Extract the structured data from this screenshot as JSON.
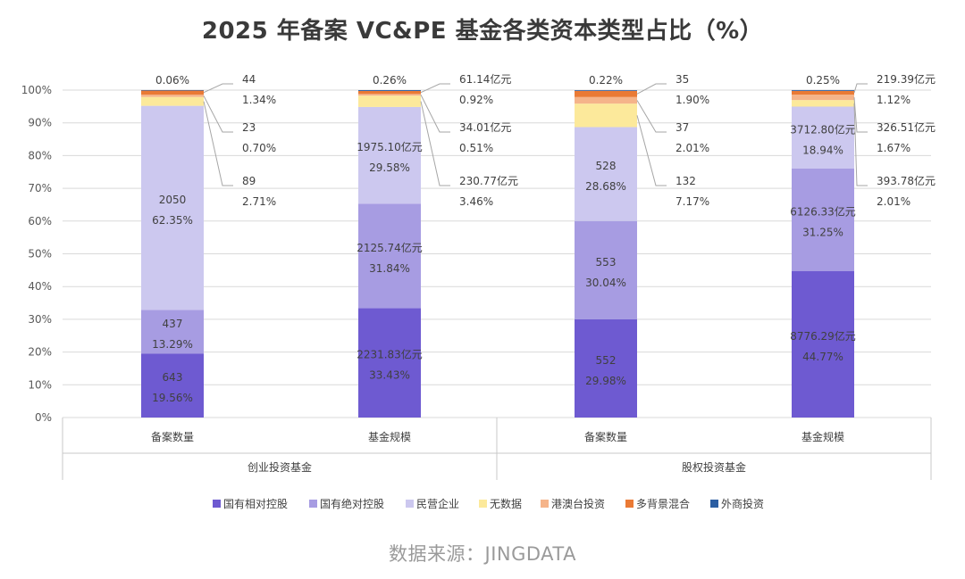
{
  "chart_data": {
    "type": "bar",
    "stacked": true,
    "title": "2025 年备案 VC&PE 基金各类资本类型占比（%）",
    "source": "数据来源：JINGDATA",
    "ylim": [
      0,
      100
    ],
    "y_ticks": [
      "0%",
      "10%",
      "20%",
      "30%",
      "40%",
      "50%",
      "60%",
      "70%",
      "80%",
      "90%",
      "100%"
    ],
    "groups": [
      {
        "label": "创业投资基金",
        "categories": [
          "备案数量",
          "基金规模"
        ]
      },
      {
        "label": "股权投资基金",
        "categories": [
          "备案数量",
          "基金规模"
        ]
      }
    ],
    "categories": [
      "备案数量",
      "基金规模",
      "备案数量",
      "基金规模"
    ],
    "series": [
      {
        "name": "国有相对控股",
        "color": "#6e5ad1",
        "values": [
          19.56,
          33.43,
          29.98,
          44.77
        ],
        "labels": [
          "643",
          "2231.83亿元",
          "552",
          "8776.29亿元"
        ]
      },
      {
        "name": "国有绝对控股",
        "color": "#a79ce2",
        "values": [
          13.29,
          31.84,
          30.04,
          31.25
        ],
        "labels": [
          "437",
          "2125.74亿元",
          "553",
          "6126.33亿元"
        ]
      },
      {
        "name": "民营企业",
        "color": "#ccc8ef",
        "values": [
          62.35,
          29.58,
          28.68,
          18.94
        ],
        "labels": [
          "2050",
          "1975.10亿元",
          "528",
          "3712.80亿元"
        ]
      },
      {
        "name": "无数据",
        "color": "#fce99b",
        "values": [
          2.71,
          3.46,
          7.17,
          2.01
        ],
        "labels": [
          "89",
          "230.77亿元",
          "132",
          "393.78亿元"
        ]
      },
      {
        "name": "港澳台投资",
        "color": "#f5b48a",
        "values": [
          0.7,
          0.51,
          2.01,
          1.67
        ],
        "labels": [
          "23",
          "34.01亿元",
          "37",
          "326.51亿元"
        ]
      },
      {
        "name": "多背景混合",
        "color": "#ea7a35",
        "values": [
          1.34,
          0.92,
          1.9,
          1.12
        ],
        "labels": [
          "44",
          "61.14亿元",
          "35",
          "219.39亿元"
        ]
      },
      {
        "name": "外商投资",
        "color": "#2b5ea2",
        "values": [
          0.06,
          0.26,
          0.22,
          0.25
        ],
        "labels": [
          "",
          "",
          "",
          ""
        ]
      }
    ]
  }
}
